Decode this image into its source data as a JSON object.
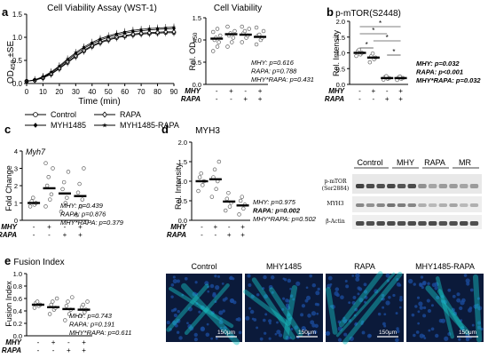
{
  "panel_labels": {
    "a": "a",
    "b": "b",
    "c": "c",
    "d": "d",
    "e": "e"
  },
  "cond": {
    "mhy": "MHY",
    "rapa": "RAPA",
    "minus": "-",
    "plus": "+"
  },
  "colors": {
    "bar": "#000000",
    "point": "#666666",
    "cyan": "#18c6c6",
    "blue": "#1a4a9a"
  },
  "blot": {
    "groups": [
      "Control",
      "MHY",
      "RAPA",
      "MR"
    ],
    "rows": [
      "p-mTOR",
      "(Ser2884)",
      "MYH3",
      "β-Actin"
    ]
  },
  "images": {
    "labels": [
      "Control",
      "MHY1485",
      "RAPA",
      "MHY1485-RAPA"
    ],
    "scale": "150μm"
  },
  "chart_data": [
    {
      "id": "a-line",
      "type": "line",
      "title": "Cell Viability Assay (WST-1)",
      "xlabel": "Time (min)",
      "ylabel": "OD450 ±SE",
      "ylabel_main": "OD",
      "ylabel_sub": "450",
      "ylabel_tail": " ±SE",
      "xlim": [
        0,
        90
      ],
      "ylim": [
        0,
        1.5
      ],
      "xticks": [
        0,
        10,
        20,
        30,
        40,
        50,
        60,
        70,
        80,
        90
      ],
      "yticks": [
        0,
        0.5,
        1,
        1.5
      ],
      "yticklabels": [
        "0.0",
        "0.5",
        "1.0",
        "1.5"
      ],
      "x": [
        0,
        5,
        10,
        15,
        20,
        25,
        30,
        35,
        40,
        45,
        50,
        55,
        60,
        65,
        70,
        75,
        80,
        85,
        90
      ],
      "series": [
        {
          "name": "Control",
          "marker": "open-circle",
          "values": [
            0.05,
            0.07,
            0.12,
            0.2,
            0.32,
            0.45,
            0.58,
            0.7,
            0.8,
            0.88,
            0.94,
            0.99,
            1.02,
            1.05,
            1.07,
            1.08,
            1.09,
            1.1,
            1.1
          ]
        },
        {
          "name": "MYH1485",
          "marker": "filled-diamond",
          "values": [
            0.05,
            0.08,
            0.14,
            0.23,
            0.36,
            0.5,
            0.64,
            0.76,
            0.86,
            0.94,
            1.0,
            1.05,
            1.09,
            1.12,
            1.14,
            1.16,
            1.17,
            1.18,
            1.19
          ]
        },
        {
          "name": "RAPA",
          "marker": "open-diamond",
          "values": [
            0.05,
            0.07,
            0.13,
            0.21,
            0.33,
            0.47,
            0.6,
            0.72,
            0.82,
            0.9,
            0.96,
            1.01,
            1.04,
            1.07,
            1.09,
            1.1,
            1.11,
            1.12,
            1.12
          ]
        },
        {
          "name": "MYH1485-RAPA",
          "marker": "star",
          "values": [
            0.05,
            0.08,
            0.15,
            0.25,
            0.38,
            0.53,
            0.67,
            0.79,
            0.89,
            0.97,
            1.03,
            1.08,
            1.12,
            1.15,
            1.17,
            1.19,
            1.2,
            1.21,
            1.22
          ]
        }
      ],
      "legend": "bottom"
    },
    {
      "id": "a-dot",
      "type": "scatter",
      "title": "Cell Viability",
      "ylabel": "Rel. OD450",
      "ylabel_main": "Rel. OD",
      "ylabel_sub": "450",
      "ylim": [
        0,
        1.5
      ],
      "yticks": [
        0,
        0.5,
        1,
        1.5
      ],
      "yticklabels": [
        "0.0",
        "0.5",
        "1.0",
        "1.5"
      ],
      "groups": [
        {
          "mhy": "-",
          "rapa": "-",
          "mean": 1.03,
          "points": [
            0.75,
            0.85,
            0.95,
            1.0,
            1.05,
            1.1,
            1.18,
            1.25
          ]
        },
        {
          "mhy": "+",
          "rapa": "-",
          "mean": 1.13,
          "points": [
            0.85,
            0.95,
            1.05,
            1.1,
            1.15,
            1.2,
            1.3
          ]
        },
        {
          "mhy": "-",
          "rapa": "+",
          "mean": 1.12,
          "points": [
            0.95,
            1.05,
            1.1,
            1.15,
            1.2,
            1.25,
            1.3
          ]
        },
        {
          "mhy": "+",
          "rapa": "+",
          "mean": 1.07,
          "points": [
            0.9,
            1.0,
            1.05,
            1.1,
            1.12,
            1.2,
            1.28
          ]
        }
      ],
      "stats": [
        "MHY: p=0.616",
        "RAPA: p=0.788",
        "MHY*RAPA: p=0.431"
      ]
    },
    {
      "id": "b",
      "type": "scatter",
      "title": "p-mTOR(S2448)",
      "ylabel": "Rel. Intensity",
      "ylim": [
        0,
        2.0
      ],
      "yticks": [
        0,
        0.5,
        1,
        1.5,
        2
      ],
      "yticklabels": [
        "0.0",
        "0.5",
        "1.0",
        "1.5",
        "2.0"
      ],
      "groups": [
        {
          "mhy": "-",
          "rapa": "-",
          "mean": 1.0,
          "points": [
            0.9,
            0.95,
            1.0,
            1.05,
            1.1
          ]
        },
        {
          "mhy": "+",
          "rapa": "-",
          "mean": 0.85,
          "points": [
            0.7,
            0.8,
            0.85,
            0.9,
            0.98
          ]
        },
        {
          "mhy": "-",
          "rapa": "+",
          "mean": 0.2,
          "points": [
            0.15,
            0.18,
            0.2,
            0.23,
            0.26
          ]
        },
        {
          "mhy": "+",
          "rapa": "+",
          "mean": 0.2,
          "points": [
            0.14,
            0.18,
            0.2,
            0.22,
            0.25
          ]
        }
      ],
      "significance": [
        "*",
        "*",
        "*",
        "*",
        "*"
      ],
      "stats": [
        "MHY: p=0.032",
        "RAPA: p<0.001",
        "MHY*RAPA: p=0.032"
      ]
    },
    {
      "id": "c",
      "type": "scatter",
      "title": "Myh7",
      "ylabel": "Fold Change",
      "ylim": [
        0,
        4
      ],
      "yticks": [
        0,
        1,
        2,
        3,
        4
      ],
      "yticklabels": [
        "0",
        "1",
        "2",
        "3",
        "4"
      ],
      "groups": [
        {
          "mhy": "-",
          "rapa": "-",
          "mean": 1.0,
          "points": [
            0.8,
            0.9,
            1.0,
            1.1,
            1.3
          ]
        },
        {
          "mhy": "+",
          "rapa": "-",
          "mean": 1.85,
          "points": [
            0.8,
            1.2,
            1.5,
            2.0,
            2.5,
            3.0,
            3.3
          ]
        },
        {
          "mhy": "-",
          "rapa": "+",
          "mean": 1.55,
          "points": [
            0.5,
            1.0,
            1.3,
            1.8,
            2.2,
            2.8
          ]
        },
        {
          "mhy": "+",
          "rapa": "+",
          "mean": 1.4,
          "points": [
            0.3,
            0.8,
            1.2,
            1.6,
            2.1,
            3.0
          ]
        }
      ],
      "stats": [
        "MHY: p=0.439",
        "RAPA: p=0.876",
        "MHY*RAPA: p=0.379"
      ]
    },
    {
      "id": "d",
      "type": "scatter",
      "title": "MYH3",
      "ylabel": "Rel. Intensity",
      "ylim": [
        0,
        2.0
      ],
      "yticks": [
        0,
        0.5,
        1,
        1.5,
        2
      ],
      "yticklabels": [
        "0.0",
        "0.5",
        "1.0",
        "1.5",
        "2.0"
      ],
      "groups": [
        {
          "mhy": "-",
          "rapa": "-",
          "mean": 1.0,
          "points": [
            0.75,
            0.9,
            1.0,
            1.1,
            1.2
          ]
        },
        {
          "mhy": "+",
          "rapa": "-",
          "mean": 1.05,
          "points": [
            0.6,
            0.8,
            1.0,
            1.1,
            1.3,
            1.5
          ]
        },
        {
          "mhy": "-",
          "rapa": "+",
          "mean": 0.48,
          "points": [
            0.25,
            0.35,
            0.45,
            0.55,
            0.7
          ]
        },
        {
          "mhy": "+",
          "rapa": "+",
          "mean": 0.38,
          "points": [
            0.15,
            0.3,
            0.4,
            0.5,
            0.6
          ]
        }
      ],
      "stats": [
        "MHY: p=0.975",
        "RAPA: p=0.002",
        "MHY*RAPA: p=0.502"
      ]
    },
    {
      "id": "e",
      "type": "scatter",
      "title": "Fusion Index",
      "ylabel": "Fusion Index",
      "ylim": [
        0,
        1.0
      ],
      "yticks": [
        0,
        0.2,
        0.4,
        0.6,
        0.8,
        1.0
      ],
      "yticklabels": [
        "0.0",
        "0.2",
        "0.4",
        "0.6",
        "0.8",
        "1.0"
      ],
      "groups": [
        {
          "mhy": "-",
          "rapa": "-",
          "mean": 0.5,
          "points": [
            0.45,
            0.48,
            0.5,
            0.53,
            0.55
          ]
        },
        {
          "mhy": "+",
          "rapa": "-",
          "mean": 0.46,
          "points": [
            0.35,
            0.42,
            0.45,
            0.5,
            0.55,
            0.6
          ]
        },
        {
          "mhy": "-",
          "rapa": "+",
          "mean": 0.43,
          "points": [
            0.25,
            0.35,
            0.42,
            0.48,
            0.55,
            0.62
          ]
        },
        {
          "mhy": "+",
          "rapa": "+",
          "mean": 0.42,
          "points": [
            0.32,
            0.38,
            0.42,
            0.46,
            0.5,
            0.55
          ]
        }
      ],
      "stats": [
        "MHY: p=0.743",
        "RAPA: p=0.191",
        "MHY*RAPA: p=0.611"
      ]
    }
  ]
}
